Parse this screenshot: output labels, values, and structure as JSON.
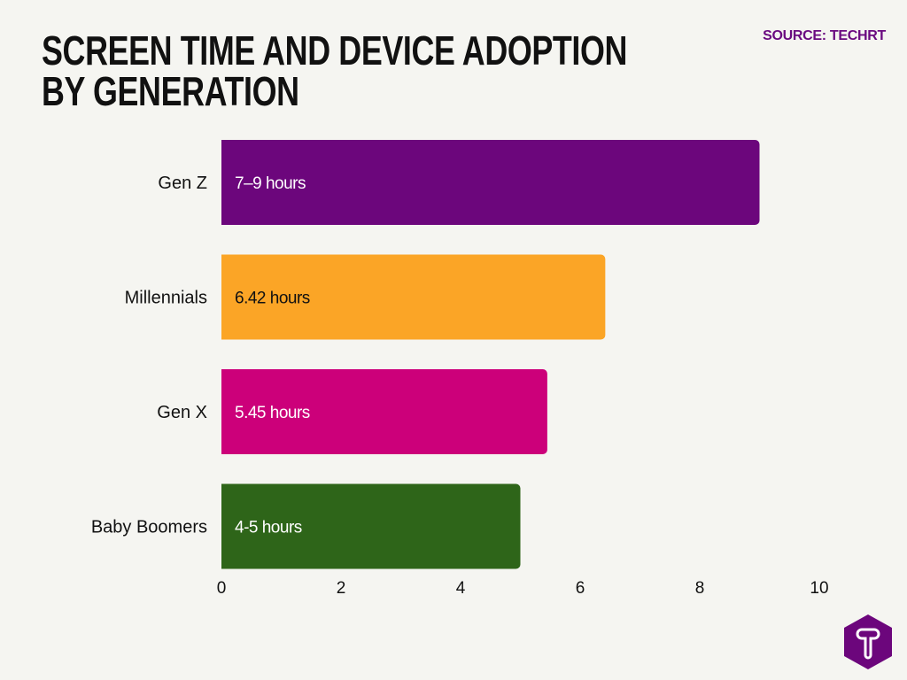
{
  "chart_data": {
    "type": "bar",
    "orientation": "horizontal",
    "title": "Screen Time and Device Adoption by Generation",
    "source": "SOURCE: TECHRT",
    "categories": [
      "Gen Z",
      "Millennials",
      "Gen X",
      "Baby Boomers"
    ],
    "values": [
      9,
      6.42,
      5.45,
      5
    ],
    "data_labels": [
      "7–9 hours",
      "6.42 hours",
      "5.45 hours",
      "4-5 hours"
    ],
    "colors": [
      "#6c067c",
      "#fba526",
      "#cc007a",
      "#2e6519"
    ],
    "label_colors": [
      "#ffffff",
      "#111111",
      "#ffffff",
      "#ffffff"
    ],
    "xlim": [
      0,
      10
    ],
    "xticks": [
      "0",
      "2",
      "4",
      "6",
      "8",
      "10"
    ],
    "xlabel": "",
    "ylabel": "",
    "grid": false,
    "legend": "none"
  },
  "logo": {
    "icon": "techrt-t-hexagon-logo",
    "color": "#6c067c"
  }
}
